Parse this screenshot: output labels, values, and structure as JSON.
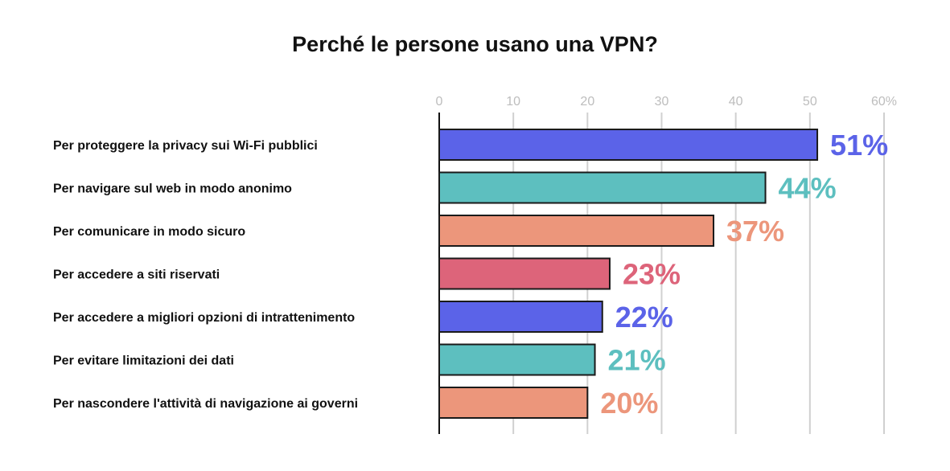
{
  "chart_data": {
    "type": "bar",
    "orientation": "horizontal",
    "title": "Perché le persone usano una VPN?",
    "categories": [
      "Per proteggere la privacy sui Wi-Fi pubblici",
      "Per navigare sul web in modo anonimo",
      "Per comunicare in modo sicuro",
      "Per accedere a siti riservati",
      "Per accedere a migliori opzioni di intrattenimento",
      "Per evitare limitazioni dei dati",
      "Per nascondere l'attività di navigazione ai governi"
    ],
    "values": [
      51,
      44,
      37,
      23,
      22,
      21,
      20
    ],
    "data_labels": [
      "51%",
      "44%",
      "37%",
      "23%",
      "22%",
      "21%",
      "20%"
    ],
    "colors": [
      "#5b63e8",
      "#5dbfbf",
      "#ec967b",
      "#dd647a",
      "#5b63e8",
      "#5dbfbf",
      "#ec967b"
    ],
    "xlim": [
      0,
      60
    ],
    "tick_labels": [
      "0",
      "10",
      "20",
      "30",
      "40",
      "50",
      "60%"
    ],
    "tick_values": [
      0,
      10,
      20,
      30,
      40,
      50,
      60
    ],
    "xlabel": "",
    "ylabel": "",
    "grid": true,
    "axis_position": "top"
  }
}
